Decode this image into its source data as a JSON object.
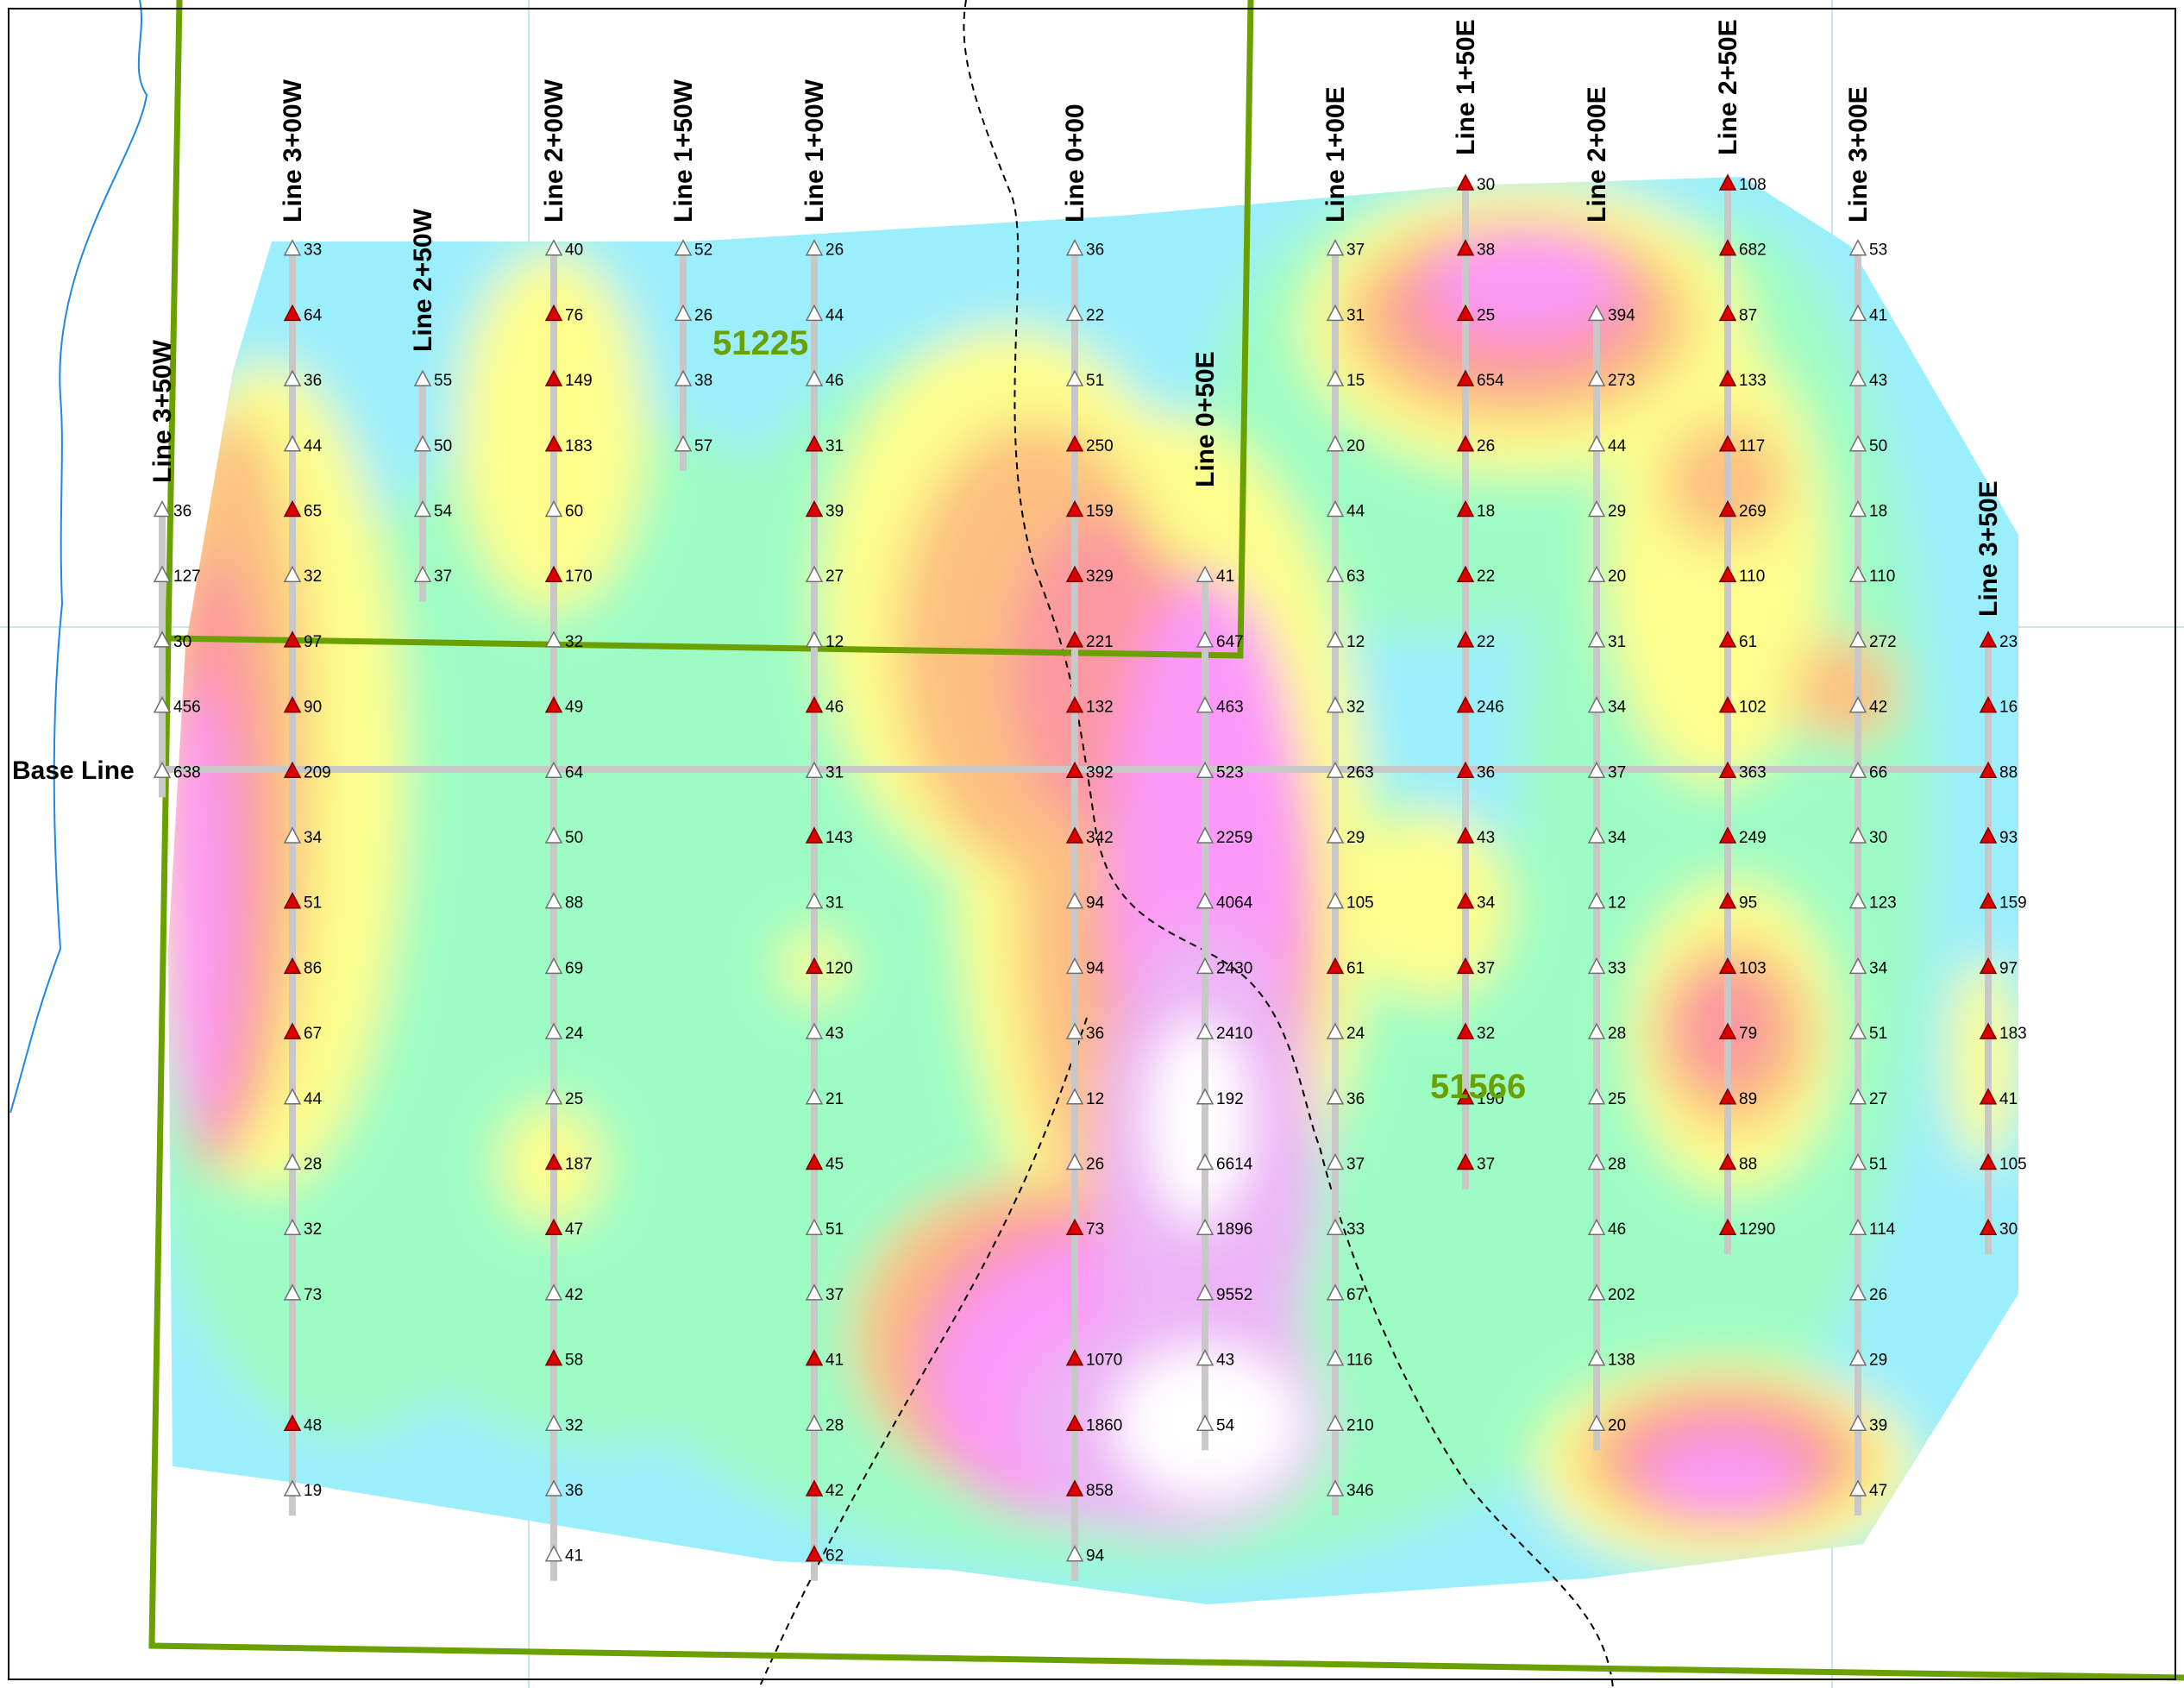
{
  "map": {
    "baseline_label": "Base Line",
    "claims": [
      "51225",
      "51566"
    ],
    "colors": {
      "claim_boundary": "#6aa000",
      "anomaly_marker": "#dd0000",
      "background_marker": "#ffffff",
      "survey_line": "#c8c8c8",
      "river": "#1e88e5",
      "trail": "#000000"
    },
    "contour_colors": [
      "#9beefc",
      "#9dfcc4",
      "#fdfd8c",
      "#fcc080",
      "#fb98a0",
      "#fc98f8",
      "#ecb4f6",
      "#ffffff"
    ],
    "icons": {
      "anomaly": "triangle-red-icon",
      "background": "triangle-white-icon"
    },
    "lines": [
      {
        "name": "Line 3+50W",
        "values": [
          "36",
          "127",
          "30",
          "456",
          "638"
        ],
        "anom": [
          0,
          0,
          0,
          0,
          0
        ]
      },
      {
        "name": "Line 3+00W",
        "values": [
          "33",
          "64",
          "36",
          "44",
          "65",
          "32",
          "97",
          "90",
          "209",
          "34",
          "51",
          "86",
          "67",
          "44",
          "28",
          "32",
          "73",
          "",
          "48",
          "19"
        ],
        "anom": [
          0,
          1,
          0,
          0,
          1,
          0,
          1,
          1,
          1,
          0,
          1,
          1,
          1,
          0,
          0,
          0,
          0,
          0,
          1,
          0
        ]
      },
      {
        "name": "Line 2+50W",
        "values": [
          "55",
          "50",
          "54",
          "37"
        ],
        "anom": [
          0,
          0,
          0,
          0
        ]
      },
      {
        "name": "Line 2+00W",
        "values": [
          "40",
          "76",
          "149",
          "183",
          "60",
          "170",
          "32",
          "49",
          "64",
          "50",
          "88",
          "69",
          "24",
          "25",
          "187",
          "47",
          "42",
          "58",
          "32",
          "36",
          "41"
        ],
        "anom": [
          0,
          1,
          1,
          1,
          0,
          1,
          0,
          1,
          0,
          0,
          0,
          0,
          0,
          0,
          1,
          1,
          0,
          1,
          0,
          0,
          0
        ]
      },
      {
        "name": "Line 1+50W",
        "values": [
          "52",
          "26",
          "38",
          "57"
        ],
        "anom": [
          0,
          0,
          0,
          0
        ]
      },
      {
        "name": "Line 1+00W",
        "values": [
          "26",
          "44",
          "46",
          "31",
          "39",
          "27",
          "12",
          "46",
          "31",
          "143",
          "31",
          "120",
          "43",
          "21",
          "45",
          "51",
          "37",
          "41",
          "28",
          "42",
          "62"
        ],
        "anom": [
          0,
          0,
          0,
          1,
          1,
          0,
          0,
          1,
          0,
          1,
          0,
          1,
          0,
          0,
          1,
          0,
          0,
          1,
          0,
          1,
          1
        ]
      },
      {
        "name": "Line 0+00",
        "values": [
          "36",
          "22",
          "51",
          "250",
          "159",
          "329",
          "221",
          "132",
          "392",
          "342",
          "94",
          "94",
          "36",
          "12",
          "26",
          "73",
          "",
          "1070",
          "1860",
          "858",
          "94"
        ],
        "anom": [
          0,
          0,
          0,
          1,
          1,
          1,
          1,
          1,
          1,
          1,
          0,
          0,
          0,
          0,
          0,
          1,
          0,
          1,
          1,
          1,
          0
        ]
      },
      {
        "name": "Line 0+50E",
        "values": [
          "41",
          "647",
          "463",
          "523",
          "2259",
          "4064",
          "2430",
          "2410",
          "192",
          "6614",
          "1896",
          "9552",
          "43",
          "54"
        ],
        "anom": [
          0,
          0,
          0,
          0,
          0,
          0,
          0,
          0,
          0,
          0,
          0,
          0,
          0,
          0
        ]
      },
      {
        "name": "Line 1+00E",
        "values": [
          "37",
          "31",
          "15",
          "20",
          "44",
          "63",
          "12",
          "32",
          "263",
          "29",
          "105",
          "61",
          "24",
          "36",
          "37",
          "33",
          "67",
          "116",
          "210",
          "346"
        ],
        "anom": [
          0,
          0,
          0,
          0,
          0,
          0,
          0,
          0,
          0,
          0,
          0,
          1,
          0,
          0,
          0,
          0,
          0,
          0,
          0,
          0
        ]
      },
      {
        "name": "Line 1+50E",
        "values": [
          "30",
          "38",
          "25",
          "654",
          "26",
          "18",
          "22",
          "22",
          "246",
          "36",
          "43",
          "34",
          "37",
          "32",
          "190",
          "37"
        ],
        "anom": [
          1,
          1,
          1,
          1,
          1,
          1,
          1,
          1,
          1,
          1,
          1,
          1,
          1,
          1,
          1,
          1
        ]
      },
      {
        "name": "Line 2+00E",
        "values": [
          "394",
          "273",
          "44",
          "29",
          "20",
          "31",
          "34",
          "37",
          "34",
          "12",
          "33",
          "28",
          "25",
          "28",
          "46",
          "202",
          "138",
          "20"
        ],
        "anom": [
          0,
          0,
          0,
          0,
          0,
          0,
          0,
          0,
          0,
          0,
          0,
          0,
          0,
          0,
          0,
          0,
          0,
          0
        ]
      },
      {
        "name": "Line 2+50E",
        "values": [
          "108",
          "682",
          "87",
          "133",
          "117",
          "269",
          "110",
          "61",
          "102",
          "363",
          "249",
          "95",
          "103",
          "79",
          "89",
          "88",
          "1290"
        ],
        "anom": [
          1,
          1,
          1,
          1,
          1,
          1,
          1,
          1,
          1,
          1,
          1,
          1,
          1,
          1,
          1,
          1,
          1
        ]
      },
      {
        "name": "Line 3+00E",
        "values": [
          "53",
          "41",
          "43",
          "50",
          "18",
          "110",
          "272",
          "42",
          "66",
          "30",
          "123",
          "34",
          "51",
          "27",
          "51",
          "114",
          "26",
          "29",
          "39",
          "47"
        ],
        "anom": [
          0,
          0,
          0,
          0,
          0,
          0,
          0,
          0,
          0,
          0,
          0,
          0,
          0,
          0,
          0,
          0,
          0,
          0,
          0,
          0
        ]
      },
      {
        "name": "Line 3+50E",
        "values": [
          "23",
          "16",
          "88",
          "93",
          "159",
          "97",
          "183",
          "41",
          "105",
          "30"
        ],
        "anom": [
          1,
          1,
          1,
          1,
          1,
          1,
          1,
          1,
          1,
          1
        ]
      }
    ]
  }
}
